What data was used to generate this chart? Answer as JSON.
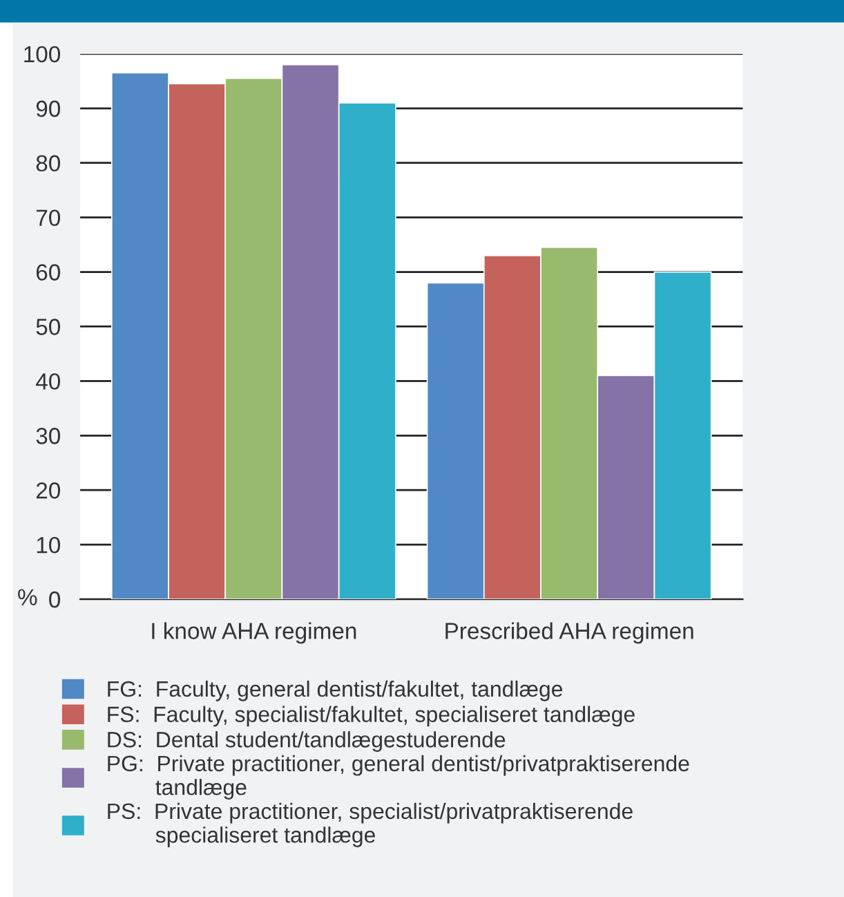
{
  "chart_data": {
    "type": "bar",
    "ylabel": "%",
    "categories": [
      "I know AHA regimen",
      "Prescribed AHA regimen"
    ],
    "series": [
      {
        "name": "FG:  Faculty, general dentist/fakultet, tandlæge",
        "color": "#5089c6",
        "values": [
          96.5,
          58
        ]
      },
      {
        "name": "FS:  Faculty, specialist/fakultet, specialiseret tandlæge",
        "color": "#c5625c",
        "values": [
          94.5,
          63
        ]
      },
      {
        "name": "DS:  Dental student/tandlægestuderende",
        "color": "#97ba6c",
        "values": [
          95.5,
          64.5
        ]
      },
      {
        "name": "PG:  Private practitioner, general dentist/privatpraktiserende\n        tandlæge",
        "color": "#8572a7",
        "values": [
          98,
          41
        ]
      },
      {
        "name": "PS:  Private practitioner, specialist/privatpraktiserende\n        specialiseret tandlæge",
        "color": "#30afcb",
        "values": [
          91,
          60
        ]
      }
    ],
    "ylim": [
      0,
      100
    ],
    "yticks": [
      0,
      10,
      20,
      30,
      40,
      50,
      60,
      70,
      80,
      90,
      100
    ],
    "grid": "y",
    "legend": "bottom"
  }
}
